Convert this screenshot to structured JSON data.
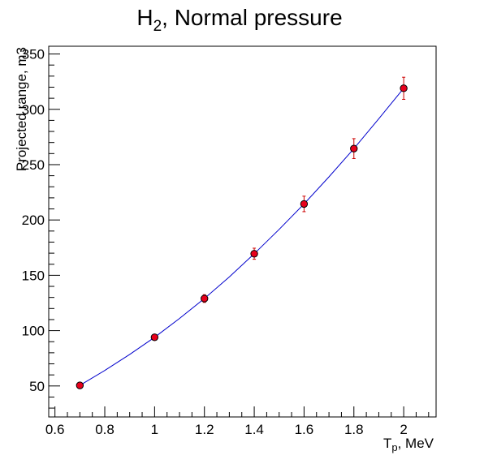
{
  "chart_data": {
    "type": "scatter",
    "title": "H2, Normal pressure",
    "title_main": "H",
    "title_sub": "2",
    "title_rest": ", Normal pressure",
    "xlabel": "Tp, MeV",
    "xlabel_main": "T",
    "xlabel_sub": "p",
    "xlabel_rest": ", MeV",
    "ylabel": "Projected range, m3",
    "xlim": [
      0.575,
      2.13
    ],
    "ylim": [
      22,
      357
    ],
    "x_ticks": [
      {
        "value": 0.6,
        "label": "0.6"
      },
      {
        "value": 0.8,
        "label": "0.8"
      },
      {
        "value": 1.0,
        "label": "1"
      },
      {
        "value": 1.2,
        "label": "1.2"
      },
      {
        "value": 1.4,
        "label": "1.4"
      },
      {
        "value": 1.6,
        "label": "1.6"
      },
      {
        "value": 1.8,
        "label": "1.8"
      },
      {
        "value": 2.0,
        "label": "2"
      }
    ],
    "y_ticks": [
      {
        "value": 50,
        "label": "50"
      },
      {
        "value": 100,
        "label": "100"
      },
      {
        "value": 150,
        "label": "150"
      },
      {
        "value": 200,
        "label": "200"
      },
      {
        "value": 250,
        "label": "250"
      },
      {
        "value": 300,
        "label": "300"
      },
      {
        "value": 350,
        "label": "350"
      }
    ],
    "series": [
      {
        "x": [
          0.7,
          1.0,
          1.2,
          1.4,
          1.6,
          1.8,
          2.0
        ],
        "y": [
          50.5,
          94,
          129,
          169.5,
          214.5,
          264.5,
          319
        ],
        "yerr": [
          1.5,
          2.5,
          3.5,
          5,
          7,
          9,
          10
        ],
        "marker_color": "#e8001c",
        "error_color": "#cc0000"
      }
    ],
    "fit_curve": {
      "x": [
        0.7,
        0.8,
        0.9,
        1.0,
        1.1,
        1.2,
        1.3,
        1.4,
        1.5,
        1.6,
        1.7,
        1.8,
        1.9,
        2.0
      ],
      "y": [
        50.5,
        64,
        78.5,
        94,
        111,
        129,
        148.5,
        169.5,
        191.5,
        214.5,
        239,
        264.5,
        291.5,
        319
      ],
      "color": "#0000cc"
    },
    "grid": false,
    "legend": "none"
  }
}
